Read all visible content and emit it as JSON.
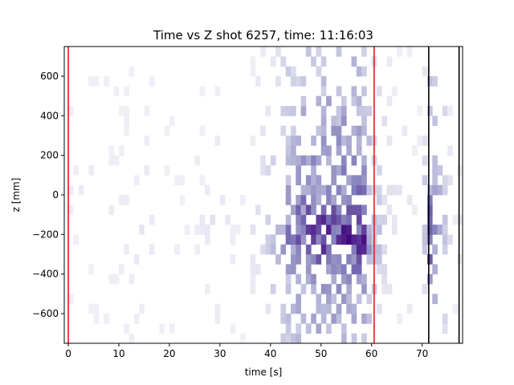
{
  "chart_data": {
    "type": "heatmap",
    "title": "Time vs Z shot 6257, time: 11:16:03",
    "xlabel": "time [s]",
    "ylabel": "z [mm]",
    "xlim": [
      -0.8,
      78
    ],
    "ylim": [
      -750,
      750
    ],
    "x_ticks": [
      0,
      10,
      20,
      30,
      40,
      50,
      60,
      70
    ],
    "x_tick_labels": [
      "0",
      "10",
      "20",
      "30",
      "40",
      "50",
      "60",
      "70"
    ],
    "y_ticks": [
      600,
      400,
      200,
      0,
      -200,
      -400,
      -600
    ],
    "y_tick_labels": [
      "600",
      "400",
      "200",
      "0",
      "−200",
      "−400",
      "−600"
    ],
    "colormap": "Purples",
    "grid": false,
    "time_bin_width_s": 1.0,
    "z_bin_width_mm": 50,
    "vertical_lines": [
      {
        "x": 0,
        "color": "#e41a1c"
      },
      {
        "x": 60.5,
        "color": "#e41a1c"
      },
      {
        "x": 71.3,
        "color": "#000000"
      },
      {
        "x": 77.3,
        "color": "#000000"
      }
    ],
    "profile": {
      "time_centers": [
        0.5,
        3.0,
        5.5,
        10.5,
        15.5,
        20.5,
        25.5,
        28.5,
        33.5,
        37.5,
        40.5,
        43.5,
        46.5,
        48.5,
        50.5,
        52.5,
        54.5,
        56.5,
        58.5,
        60.5,
        63.5,
        66.5,
        69.5,
        71.5,
        73.5,
        76.5
      ],
      "time_weights": [
        0.1,
        0.25,
        0.2,
        0.2,
        0.25,
        0.15,
        0.2,
        0.3,
        0.15,
        0.35,
        0.55,
        0.8,
        0.9,
        0.95,
        0.95,
        1.0,
        1.0,
        1.0,
        0.95,
        0.6,
        0.35,
        0.3,
        0.2,
        0.9,
        0.7,
        0.2
      ],
      "z_centers": [
        -725,
        -600,
        -400,
        -300,
        -225,
        -150,
        -75,
        0,
        100,
        200,
        300,
        400,
        600
      ],
      "z_weights": [
        0.4,
        0.45,
        0.55,
        0.9,
        1.0,
        0.95,
        0.85,
        0.7,
        0.55,
        0.55,
        0.45,
        0.45,
        0.3
      ]
    }
  }
}
